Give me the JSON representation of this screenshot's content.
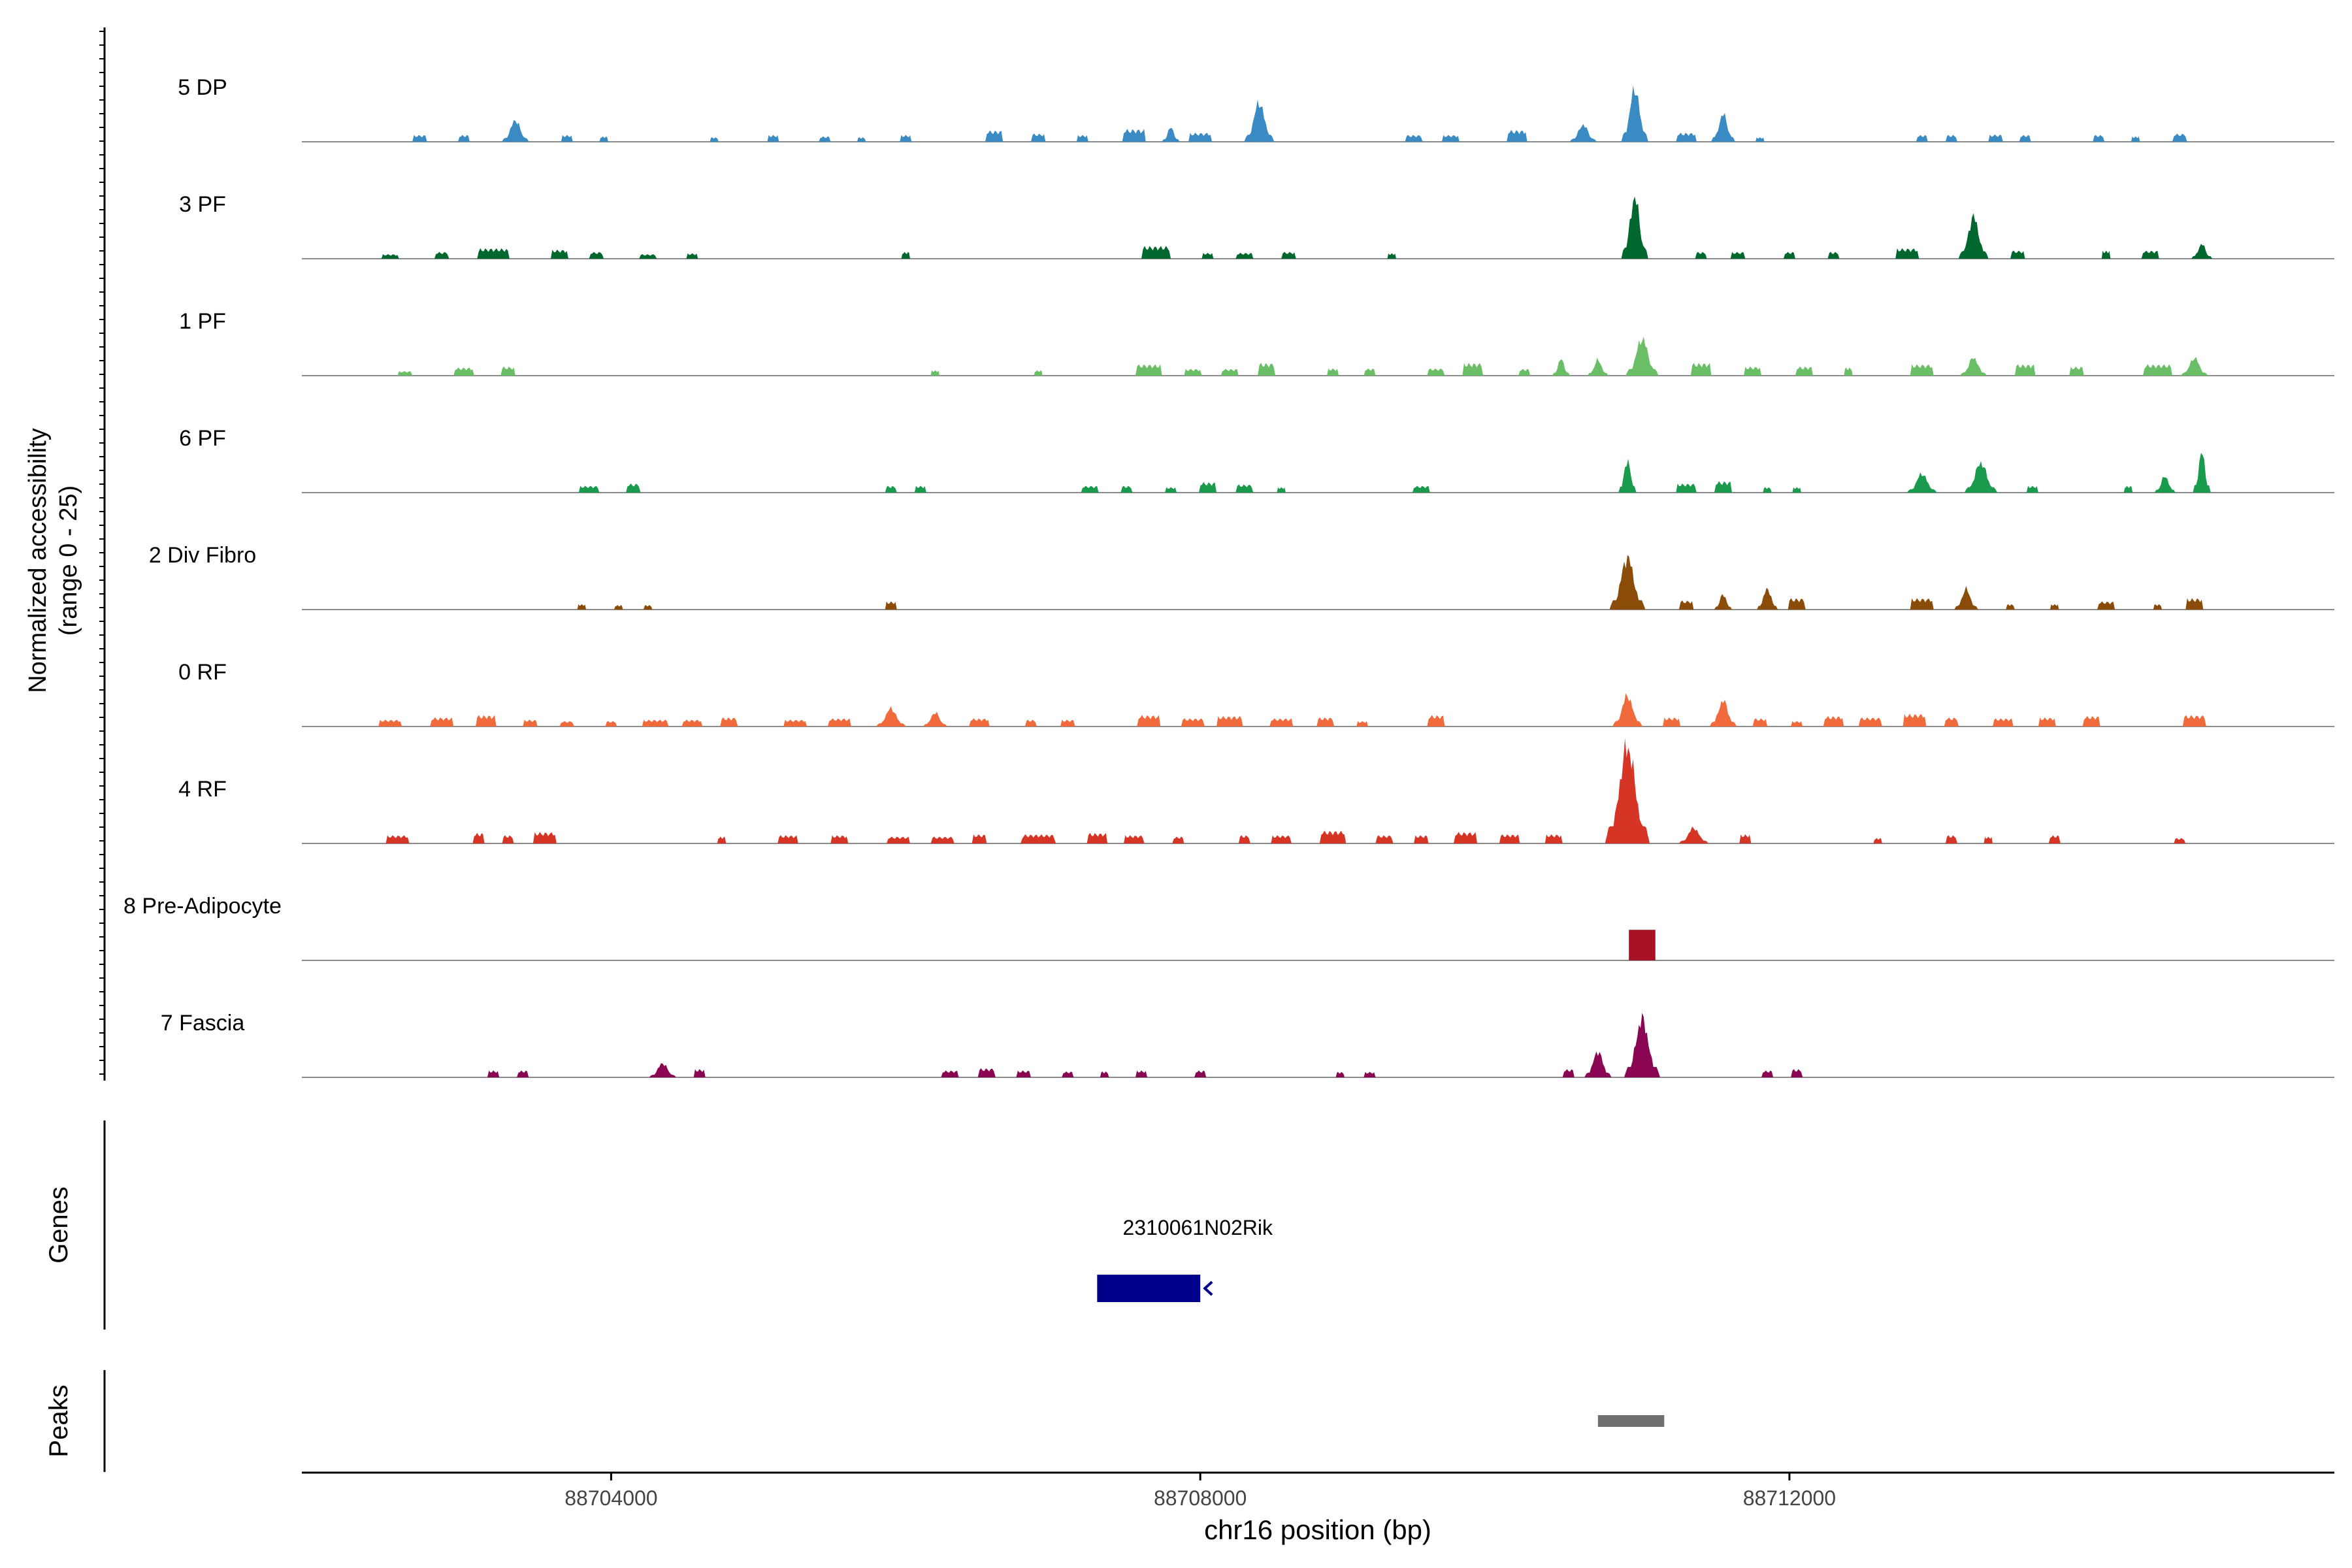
{
  "chart_data": {
    "type": "area",
    "ylabel_line1": "Normalized accessibility",
    "ylabel_line2": "(range 0 - 25)",
    "xlabel": "chr16 position (bp)",
    "xlim": [
      88701900,
      88715700
    ],
    "xticks": [
      88704000,
      88708000,
      88712000
    ],
    "tick_labels": [
      "88704000",
      "88708000",
      "88712000"
    ],
    "ylim": [
      0,
      25
    ],
    "tracks": [
      {
        "name": "5 DP",
        "color": "#3a8ac4",
        "peaks": [
          [
            88702700,
            50,
            1.5
          ],
          [
            88703000,
            40,
            1.5
          ],
          [
            88703350,
            90,
            4.6
          ],
          [
            88703700,
            40,
            1.5
          ],
          [
            88703950,
            30,
            1.2
          ],
          [
            88704700,
            30,
            1.0
          ],
          [
            88705100,
            40,
            1.5
          ],
          [
            88705450,
            40,
            1.2
          ],
          [
            88705700,
            30,
            1.0
          ],
          [
            88706000,
            40,
            1.5
          ],
          [
            88706600,
            60,
            2.5
          ],
          [
            88706900,
            50,
            1.8
          ],
          [
            88707200,
            40,
            1.5
          ],
          [
            88707550,
            80,
            2.8
          ],
          [
            88707800,
            60,
            3.0
          ],
          [
            88708000,
            80,
            2.0
          ],
          [
            88708400,
            100,
            8.3
          ],
          [
            88709450,
            60,
            1.5
          ],
          [
            88709700,
            60,
            1.5
          ],
          [
            88710150,
            70,
            2.6
          ],
          [
            88710600,
            90,
            3.6
          ],
          [
            88710950,
            90,
            11.3
          ],
          [
            88711300,
            70,
            2.0
          ],
          [
            88711550,
            80,
            5.8
          ],
          [
            88711800,
            30,
            1.0
          ],
          [
            88712900,
            40,
            1.5
          ],
          [
            88713100,
            40,
            1.5
          ],
          [
            88713400,
            50,
            1.6
          ],
          [
            88713600,
            40,
            1.5
          ],
          [
            88714100,
            40,
            1.5
          ],
          [
            88714350,
            30,
            1.2
          ],
          [
            88714650,
            50,
            1.8
          ]
        ]
      },
      {
        "name": "3 PF",
        "color": "#00682e",
        "peaks": [
          [
            88702500,
            60,
            1.0
          ],
          [
            88702850,
            50,
            1.5
          ],
          [
            88703200,
            110,
            2.3
          ],
          [
            88703650,
            60,
            2.0
          ],
          [
            88703900,
            50,
            1.5
          ],
          [
            88704250,
            60,
            1.0
          ],
          [
            88704550,
            40,
            1.2
          ],
          [
            88706000,
            30,
            1.5
          ],
          [
            88707700,
            100,
            2.8
          ],
          [
            88708050,
            40,
            1.3
          ],
          [
            88708300,
            60,
            1.3
          ],
          [
            88708600,
            50,
            1.5
          ],
          [
            88709300,
            30,
            1.2
          ],
          [
            88710950,
            90,
            13.0
          ],
          [
            88711400,
            40,
            1.5
          ],
          [
            88711650,
            50,
            1.5
          ],
          [
            88712000,
            40,
            1.5
          ],
          [
            88712300,
            40,
            1.5
          ],
          [
            88712800,
            80,
            2.3
          ],
          [
            88713250,
            100,
            8.8
          ],
          [
            88713550,
            50,
            1.8
          ],
          [
            88714150,
            30,
            1.8
          ],
          [
            88714450,
            60,
            1.8
          ],
          [
            88714800,
            70,
            3.1
          ]
        ]
      },
      {
        "name": "1 PF",
        "color": "#6abe65",
        "peaks": [
          [
            88702600,
            50,
            1.0
          ],
          [
            88703000,
            70,
            1.8
          ],
          [
            88703300,
            50,
            2.0
          ],
          [
            88706200,
            30,
            1.2
          ],
          [
            88706900,
            30,
            1.2
          ],
          [
            88707650,
            90,
            2.5
          ],
          [
            88707950,
            60,
            1.5
          ],
          [
            88708200,
            60,
            1.5
          ],
          [
            88708450,
            60,
            2.8
          ],
          [
            88708900,
            40,
            1.6
          ],
          [
            88709150,
            40,
            1.6
          ],
          [
            88709600,
            60,
            1.6
          ],
          [
            88709850,
            70,
            2.8
          ],
          [
            88710200,
            40,
            1.5
          ],
          [
            88710450,
            60,
            3.5
          ],
          [
            88710700,
            70,
            3.3
          ],
          [
            88711000,
            110,
            7.8
          ],
          [
            88711400,
            70,
            2.8
          ],
          [
            88711750,
            60,
            2.0
          ],
          [
            88712100,
            60,
            2.0
          ],
          [
            88712400,
            30,
            1.8
          ],
          [
            88712900,
            80,
            2.5
          ],
          [
            88713250,
            90,
            3.8
          ],
          [
            88713600,
            70,
            2.5
          ],
          [
            88713950,
            50,
            2.0
          ],
          [
            88714500,
            100,
            2.5
          ],
          [
            88714750,
            90,
            3.8
          ]
        ]
      },
      {
        "name": "6 PF",
        "color": "#1a9a4c",
        "peaks": [
          [
            88703850,
            70,
            1.5
          ],
          [
            88704150,
            50,
            2.0
          ],
          [
            88705900,
            40,
            1.5
          ],
          [
            88706100,
            40,
            1.5
          ],
          [
            88707250,
            60,
            1.5
          ],
          [
            88707500,
            40,
            1.5
          ],
          [
            88707800,
            40,
            1.2
          ],
          [
            88708050,
            60,
            2.3
          ],
          [
            88708300,
            60,
            1.8
          ],
          [
            88708550,
            30,
            1.2
          ],
          [
            88709500,
            60,
            1.5
          ],
          [
            88710900,
            60,
            7.0
          ],
          [
            88711300,
            70,
            2.0
          ],
          [
            88711550,
            60,
            2.5
          ],
          [
            88711850,
            30,
            1.2
          ],
          [
            88712050,
            30,
            1.2
          ],
          [
            88712900,
            100,
            4.0
          ],
          [
            88713300,
            110,
            6.3
          ],
          [
            88713650,
            40,
            1.5
          ],
          [
            88714300,
            30,
            1.5
          ],
          [
            88714550,
            70,
            3.5
          ],
          [
            88714800,
            60,
            8.5
          ]
        ]
      },
      {
        "name": "2 Div Fibro",
        "color": "#8a4c08",
        "peaks": [
          [
            88703800,
            30,
            1.2
          ],
          [
            88704050,
            30,
            1.0
          ],
          [
            88704250,
            30,
            1.0
          ],
          [
            88705900,
            40,
            1.8
          ],
          [
            88710900,
            120,
            11.0
          ],
          [
            88711300,
            50,
            2.0
          ],
          [
            88711550,
            60,
            3.3
          ],
          [
            88711850,
            70,
            4.5
          ],
          [
            88712050,
            60,
            2.5
          ],
          [
            88712900,
            80,
            2.5
          ],
          [
            88713200,
            80,
            4.3
          ],
          [
            88713500,
            30,
            1.2
          ],
          [
            88713800,
            30,
            1.2
          ],
          [
            88714150,
            60,
            1.8
          ],
          [
            88714500,
            30,
            1.2
          ],
          [
            88714750,
            60,
            2.5
          ]
        ]
      },
      {
        "name": "0 RF",
        "color": "#f06a3c",
        "peaks": [
          [
            88702500,
            80,
            1.5
          ],
          [
            88702850,
            80,
            2.0
          ],
          [
            88703150,
            70,
            2.5
          ],
          [
            88703450,
            50,
            1.5
          ],
          [
            88703700,
            50,
            1.2
          ],
          [
            88704000,
            40,
            1.2
          ],
          [
            88704300,
            90,
            1.5
          ],
          [
            88704550,
            70,
            1.5
          ],
          [
            88704800,
            60,
            2.0
          ],
          [
            88705250,
            80,
            1.5
          ],
          [
            88705550,
            80,
            1.8
          ],
          [
            88705900,
            100,
            3.8
          ],
          [
            88706200,
            80,
            3.0
          ],
          [
            88706500,
            70,
            1.8
          ],
          [
            88706850,
            40,
            1.5
          ],
          [
            88707100,
            50,
            1.5
          ],
          [
            88707650,
            80,
            2.5
          ],
          [
            88707950,
            80,
            1.8
          ],
          [
            88708200,
            90,
            2.3
          ],
          [
            88708550,
            80,
            1.8
          ],
          [
            88708850,
            60,
            2.0
          ],
          [
            88709100,
            40,
            1.2
          ],
          [
            88709600,
            60,
            2.5
          ],
          [
            88710900,
            100,
            6.5
          ],
          [
            88711200,
            60,
            2.0
          ],
          [
            88711550,
            90,
            5.5
          ],
          [
            88711800,
            50,
            1.8
          ],
          [
            88712050,
            40,
            1.2
          ],
          [
            88712300,
            70,
            2.3
          ],
          [
            88712550,
            80,
            2.0
          ],
          [
            88712850,
            80,
            2.8
          ],
          [
            88713100,
            50,
            2.0
          ],
          [
            88713450,
            70,
            1.8
          ],
          [
            88713750,
            60,
            2.0
          ],
          [
            88714050,
            60,
            2.3
          ],
          [
            88714750,
            80,
            2.5
          ]
        ]
      },
      {
        "name": "4 RF",
        "color": "#d63526",
        "peaks": [
          [
            88702550,
            80,
            1.8
          ],
          [
            88703100,
            40,
            2.3
          ],
          [
            88703300,
            40,
            1.8
          ],
          [
            88703550,
            80,
            2.5
          ],
          [
            88704750,
            30,
            1.5
          ],
          [
            88705200,
            70,
            1.8
          ],
          [
            88705550,
            60,
            1.8
          ],
          [
            88705950,
            80,
            1.5
          ],
          [
            88706250,
            80,
            1.5
          ],
          [
            88706500,
            50,
            2.0
          ],
          [
            88706900,
            120,
            2.0
          ],
          [
            88707300,
            70,
            2.3
          ],
          [
            88707550,
            70,
            1.8
          ],
          [
            88707850,
            40,
            1.5
          ],
          [
            88708300,
            40,
            1.8
          ],
          [
            88708550,
            70,
            1.8
          ],
          [
            88708900,
            90,
            2.8
          ],
          [
            88709250,
            60,
            1.8
          ],
          [
            88709500,
            50,
            1.8
          ],
          [
            88709800,
            80,
            2.5
          ],
          [
            88710100,
            70,
            2.0
          ],
          [
            88710400,
            60,
            2.0
          ],
          [
            88710900,
            150,
            20.3
          ],
          [
            88711350,
            100,
            3.3
          ],
          [
            88711700,
            40,
            2.0
          ],
          [
            88712600,
            30,
            1.2
          ],
          [
            88713100,
            40,
            1.8
          ],
          [
            88713350,
            30,
            1.5
          ],
          [
            88713800,
            40,
            1.8
          ],
          [
            88714650,
            40,
            1.2
          ]
        ]
      },
      {
        "name": "8 Pre-Adipocyte",
        "color": "#a61223",
        "peaks": [
          [
            88711000,
            90,
            6.5
          ]
        ]
      },
      {
        "name": "7 Fascia",
        "color": "#8b0652",
        "peaks": [
          [
            88703200,
            40,
            1.5
          ],
          [
            88703400,
            40,
            1.5
          ],
          [
            88704350,
            90,
            3.0
          ],
          [
            88704600,
            40,
            1.8
          ],
          [
            88706300,
            60,
            1.5
          ],
          [
            88706550,
            60,
            2.0
          ],
          [
            88706800,
            50,
            1.5
          ],
          [
            88707100,
            40,
            1.3
          ],
          [
            88707350,
            30,
            1.3
          ],
          [
            88707600,
            40,
            1.5
          ],
          [
            88708000,
            40,
            1.5
          ],
          [
            88708950,
            30,
            1.2
          ],
          [
            88709150,
            40,
            1.2
          ],
          [
            88710500,
            40,
            1.8
          ],
          [
            88710700,
            90,
            5.5
          ],
          [
            88711000,
            120,
            12.3
          ],
          [
            88711850,
            40,
            1.5
          ],
          [
            88712050,
            40,
            1.8
          ]
        ]
      }
    ],
    "genes": {
      "label": "Genes",
      "items": [
        {
          "name": "2310061N02Rik",
          "start": 88707300,
          "end": 88708000,
          "color": "#00008b",
          "strand": "<"
        }
      ]
    },
    "peaks_track": {
      "label": "Peaks",
      "items": [
        {
          "start": 88710700,
          "end": 88711150,
          "color": "#707070"
        }
      ]
    }
  }
}
